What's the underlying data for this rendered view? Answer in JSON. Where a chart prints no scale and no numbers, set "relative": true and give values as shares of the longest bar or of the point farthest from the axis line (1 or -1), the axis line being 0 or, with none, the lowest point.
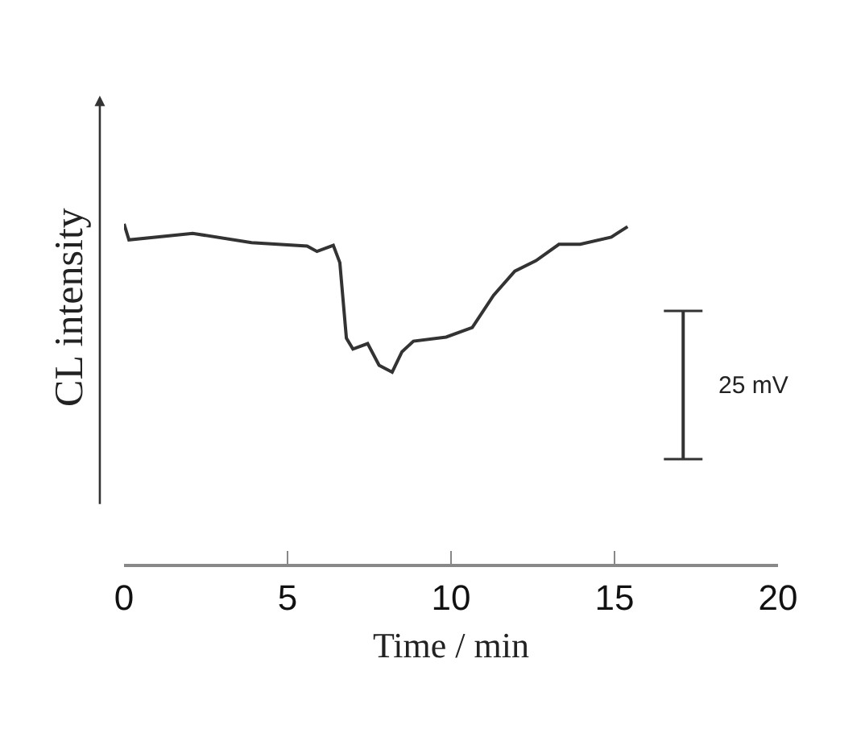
{
  "chart_data": {
    "type": "line",
    "xlabel": "Time / min",
    "ylabel": "CL intensity",
    "relative": true,
    "series": [
      {
        "color": "#333333",
        "x": [
          0,
          0.15,
          2.1,
          3.9,
          5.6,
          5.9,
          6.4,
          6.6,
          6.8,
          7.0,
          7.45,
          7.8,
          8.2,
          8.5,
          8.85,
          9.85,
          10.65,
          11.3,
          11.95,
          12.6,
          13.3,
          13.95,
          14.9,
          15.4
        ],
        "values": [
          1.0,
          0.953,
          0.972,
          0.945,
          0.935,
          0.919,
          0.937,
          0.886,
          0.664,
          0.632,
          0.648,
          0.584,
          0.564,
          0.624,
          0.655,
          0.667,
          0.695,
          0.79,
          0.861,
          0.892,
          0.94,
          0.94,
          0.961,
          0.992
        ]
      },
      {
        "name": "25 mV",
        "color": "#333333",
        "x": [
          17.1,
          17.1
        ],
        "values": [
          0.744,
          0.308
        ]
      }
    ],
    "xlim": [
      0,
      20
    ],
    "xticks": [
      0,
      5,
      10,
      15,
      20
    ]
  }
}
